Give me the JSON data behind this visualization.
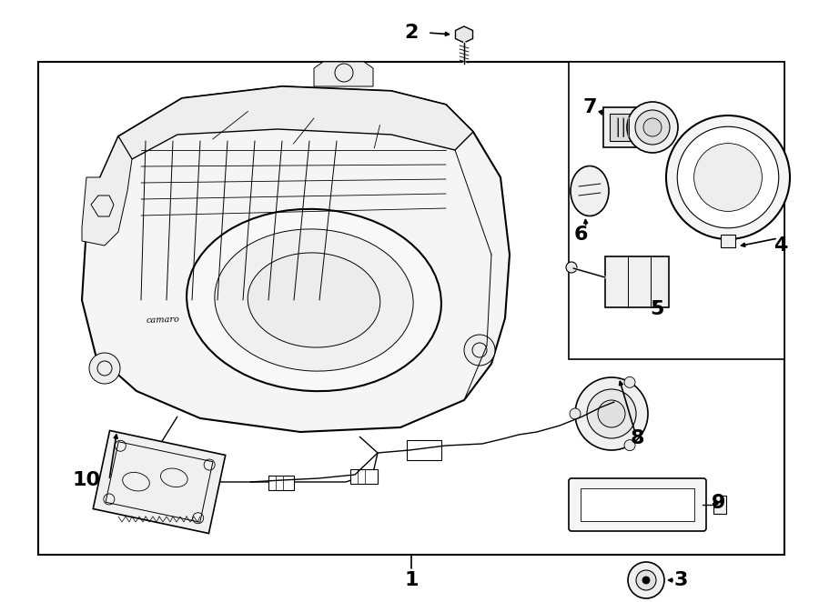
{
  "bg_color": "#ffffff",
  "line_color": "#000000",
  "fig_width": 9.0,
  "fig_height": 6.62,
  "dpi": 100,
  "lw_main": 1.5,
  "lw_med": 1.0,
  "lw_thin": 0.7
}
